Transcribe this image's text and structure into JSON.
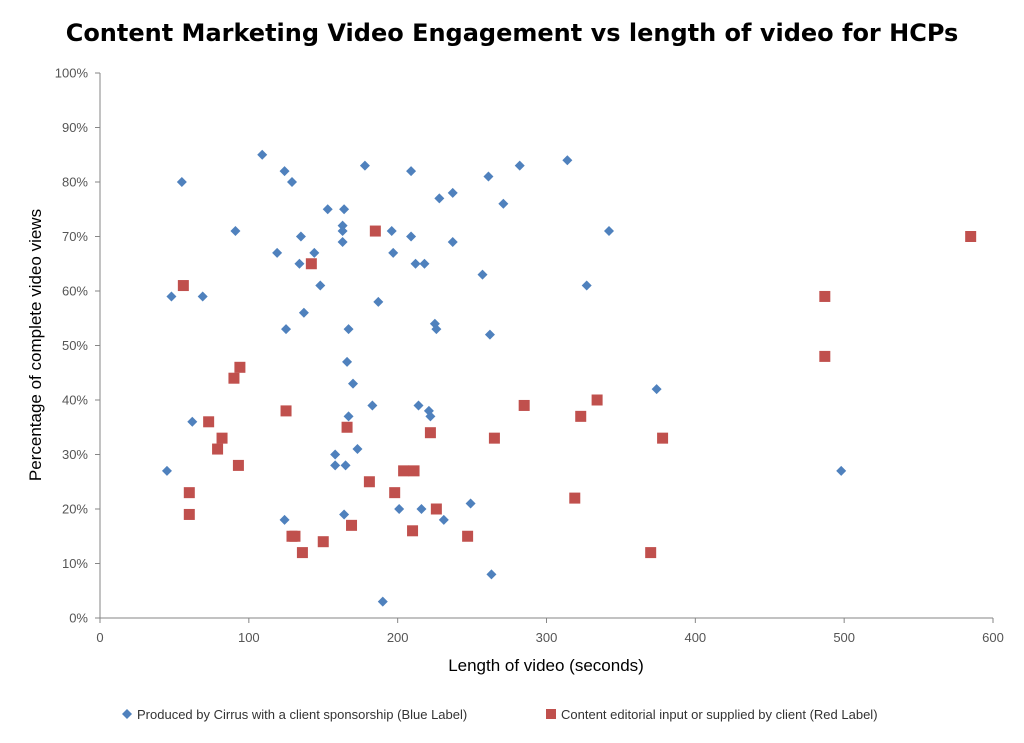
{
  "chart_data": {
    "type": "scatter",
    "title": "Content Marketing Video Engagement vs length of video for HCPs",
    "xlabel": "Length of video (seconds)",
    "ylabel": "Percentage of complete video views",
    "xlim": [
      0,
      600
    ],
    "ylim": [
      0,
      100
    ],
    "x_ticks": [
      0,
      100,
      200,
      300,
      400,
      500,
      600
    ],
    "y_ticks": [
      0,
      10,
      20,
      30,
      40,
      50,
      60,
      70,
      80,
      90,
      100
    ],
    "y_tick_labels": [
      "0%",
      "10%",
      "20%",
      "30%",
      "40%",
      "50%",
      "60%",
      "70%",
      "80%",
      "90%",
      "100%"
    ],
    "x_tick_labels": [
      "0",
      "100",
      "200",
      "300",
      "400",
      "500",
      "600"
    ],
    "grid": false,
    "legend_position": "bottom",
    "series": [
      {
        "name": "Produced  by Cirrus with a client sponsorship (Blue Label)",
        "marker": "diamond",
        "color": "#4f81bd",
        "points": [
          [
            55,
            80
          ],
          [
            48,
            59
          ],
          [
            45,
            27
          ],
          [
            62,
            36
          ],
          [
            69,
            59
          ],
          [
            91,
            71
          ],
          [
            109,
            85
          ],
          [
            119,
            67
          ],
          [
            124,
            82
          ],
          [
            124,
            18
          ],
          [
            125,
            53
          ],
          [
            129,
            80
          ],
          [
            134,
            65
          ],
          [
            135,
            70
          ],
          [
            137,
            56
          ],
          [
            144,
            67
          ],
          [
            148,
            61
          ],
          [
            153,
            75
          ],
          [
            158,
            30
          ],
          [
            158,
            28
          ],
          [
            163,
            72
          ],
          [
            163,
            71
          ],
          [
            163,
            69
          ],
          [
            164,
            75
          ],
          [
            164,
            19
          ],
          [
            165,
            28
          ],
          [
            166,
            47
          ],
          [
            167,
            53
          ],
          [
            167,
            37
          ],
          [
            170,
            43
          ],
          [
            173,
            31
          ],
          [
            178,
            83
          ],
          [
            183,
            39
          ],
          [
            187,
            58
          ],
          [
            190,
            3
          ],
          [
            196,
            71
          ],
          [
            197,
            67
          ],
          [
            201,
            20
          ],
          [
            209,
            82
          ],
          [
            209,
            70
          ],
          [
            212,
            65
          ],
          [
            214,
            39
          ],
          [
            216,
            20
          ],
          [
            218,
            65
          ],
          [
            221,
            38
          ],
          [
            222,
            37
          ],
          [
            225,
            54
          ],
          [
            226,
            53
          ],
          [
            228,
            77
          ],
          [
            231,
            18
          ],
          [
            237,
            78
          ],
          [
            237,
            69
          ],
          [
            249,
            21
          ],
          [
            257,
            63
          ],
          [
            261,
            81
          ],
          [
            262,
            52
          ],
          [
            263,
            8
          ],
          [
            271,
            76
          ],
          [
            282,
            83
          ],
          [
            314,
            84
          ],
          [
            327,
            61
          ],
          [
            342,
            71
          ],
          [
            374,
            42
          ],
          [
            498,
            27
          ]
        ]
      },
      {
        "name": "Content editorial input or supplied by client (Red Label)",
        "marker": "square",
        "color": "#c0504d",
        "points": [
          [
            56,
            61
          ],
          [
            60,
            23
          ],
          [
            60,
            19
          ],
          [
            73,
            36
          ],
          [
            79,
            31
          ],
          [
            82,
            33
          ],
          [
            90,
            44
          ],
          [
            93,
            28
          ],
          [
            94,
            46
          ],
          [
            125,
            38
          ],
          [
            129,
            15
          ],
          [
            131,
            15
          ],
          [
            136,
            12
          ],
          [
            142,
            65
          ],
          [
            150,
            14
          ],
          [
            166,
            35
          ],
          [
            169,
            17
          ],
          [
            181,
            25
          ],
          [
            185,
            71
          ],
          [
            198,
            23
          ],
          [
            204,
            27
          ],
          [
            210,
            16
          ],
          [
            211,
            27
          ],
          [
            222,
            34
          ],
          [
            226,
            20
          ],
          [
            247,
            15
          ],
          [
            265,
            33
          ],
          [
            285,
            39
          ],
          [
            319,
            22
          ],
          [
            323,
            37
          ],
          [
            334,
            40
          ],
          [
            370,
            12
          ],
          [
            378,
            33
          ],
          [
            487,
            59
          ],
          [
            487,
            48
          ],
          [
            585,
            70
          ]
        ]
      }
    ]
  }
}
